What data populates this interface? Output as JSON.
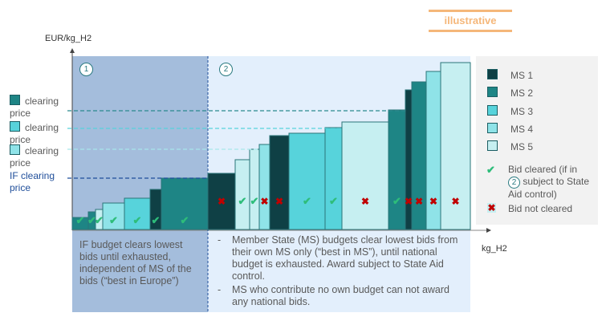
{
  "badge": "illustrative",
  "y_axis_label": "EUR/kg_H2",
  "x_axis_label": "kg_H2",
  "region1": {
    "number": "1",
    "text": "IF budget clears lowest bids until exhausted, independent of MS of the bids (“best in Europe”)"
  },
  "region2": {
    "number": "2",
    "bullets": [
      "Member State (MS) budgets clear lowest bids from their own MS only (“best in MS”), until national budget is exhausted. Award subject to State Aid control.",
      "MS who contribute no own budget can not award any national bids."
    ]
  },
  "clearing_labels": [
    {
      "text": "clearing price",
      "ms": 2
    },
    {
      "text": "clearing price",
      "ms": 3
    },
    {
      "text": "clearing price",
      "ms": 4
    },
    {
      "text": "IF clearing price",
      "ms": 0
    }
  ],
  "colors": {
    "ms1": "#0f4045",
    "ms2": "#1e8585",
    "ms3": "#57d3db",
    "ms4": "#8fe3e8",
    "ms5": "#c6eff1",
    "if_line": "#1f4e9a",
    "check": "#2ebd7a",
    "cross": "#c00000",
    "region1": "#a4bddc",
    "region2": "#e3effc",
    "badge": "#f5b77a"
  },
  "legend": {
    "items": [
      "MS 1",
      "MS 2",
      "MS 3",
      "MS 4",
      "MS 5"
    ],
    "cleared_pre": "Bid cleared (if in",
    "cleared_circle": "2",
    "cleared_post": "subject to State",
    "cleared_end": "Aid control)",
    "not_cleared": "Bid not cleared"
  },
  "clearing_prices": {
    "if": 64,
    "ms2": 148,
    "ms3": 126,
    "ms4": 100
  },
  "chart_data": {
    "type": "bar",
    "note_units": "illustrative relative units",
    "bars": [
      {
        "ms": 2,
        "volume": 20,
        "price": 15,
        "cleared": true,
        "stage": 1
      },
      {
        "ms": 2,
        "volume": 9,
        "price": 22,
        "cleared": true,
        "stage": 1
      },
      {
        "ms": 5,
        "volume": 9,
        "price": 25,
        "cleared": true,
        "stage": 1
      },
      {
        "ms": 4,
        "volume": 27,
        "price": 33,
        "cleared": true,
        "stage": 1
      },
      {
        "ms": 3,
        "volume": 32,
        "price": 39,
        "cleared": true,
        "stage": 1
      },
      {
        "ms": 1,
        "volume": 14,
        "price": 50,
        "cleared": true,
        "stage": 1
      },
      {
        "ms": 2,
        "volume": 58,
        "price": 64,
        "cleared": true,
        "stage": 1
      },
      {
        "ms": 1,
        "volume": 34,
        "price": 70,
        "cleared": false,
        "stage": 2
      },
      {
        "ms": 5,
        "volume": 18,
        "price": 87,
        "cleared": true,
        "stage": 2
      },
      {
        "ms": 5,
        "volume": 12,
        "price": 100,
        "cleared": true,
        "stage": 2
      },
      {
        "ms": 4,
        "volume": 13,
        "price": 106,
        "cleared": false,
        "stage": 2
      },
      {
        "ms": 1,
        "volume": 24,
        "price": 117,
        "cleared": false,
        "stage": 2
      },
      {
        "ms": 3,
        "volume": 45,
        "price": 120,
        "cleared": true,
        "stage": 2
      },
      {
        "ms": 3,
        "volume": 21,
        "price": 127,
        "cleared": true,
        "stage": 2
      },
      {
        "ms": 5,
        "volume": 58,
        "price": 134,
        "cleared": false,
        "stage": 2
      },
      {
        "ms": 2,
        "volume": 21,
        "price": 149,
        "cleared": true,
        "stage": 2
      },
      {
        "ms": 1,
        "volume": 8,
        "price": 174,
        "cleared": false,
        "stage": 2
      },
      {
        "ms": 2,
        "volume": 18,
        "price": 184,
        "cleared": false,
        "stage": 2
      },
      {
        "ms": 4,
        "volume": 18,
        "price": 197,
        "cleared": false,
        "stage": 2
      },
      {
        "ms": 5,
        "volume": 37,
        "price": 208,
        "cleared": false,
        "stage": 2
      }
    ]
  }
}
